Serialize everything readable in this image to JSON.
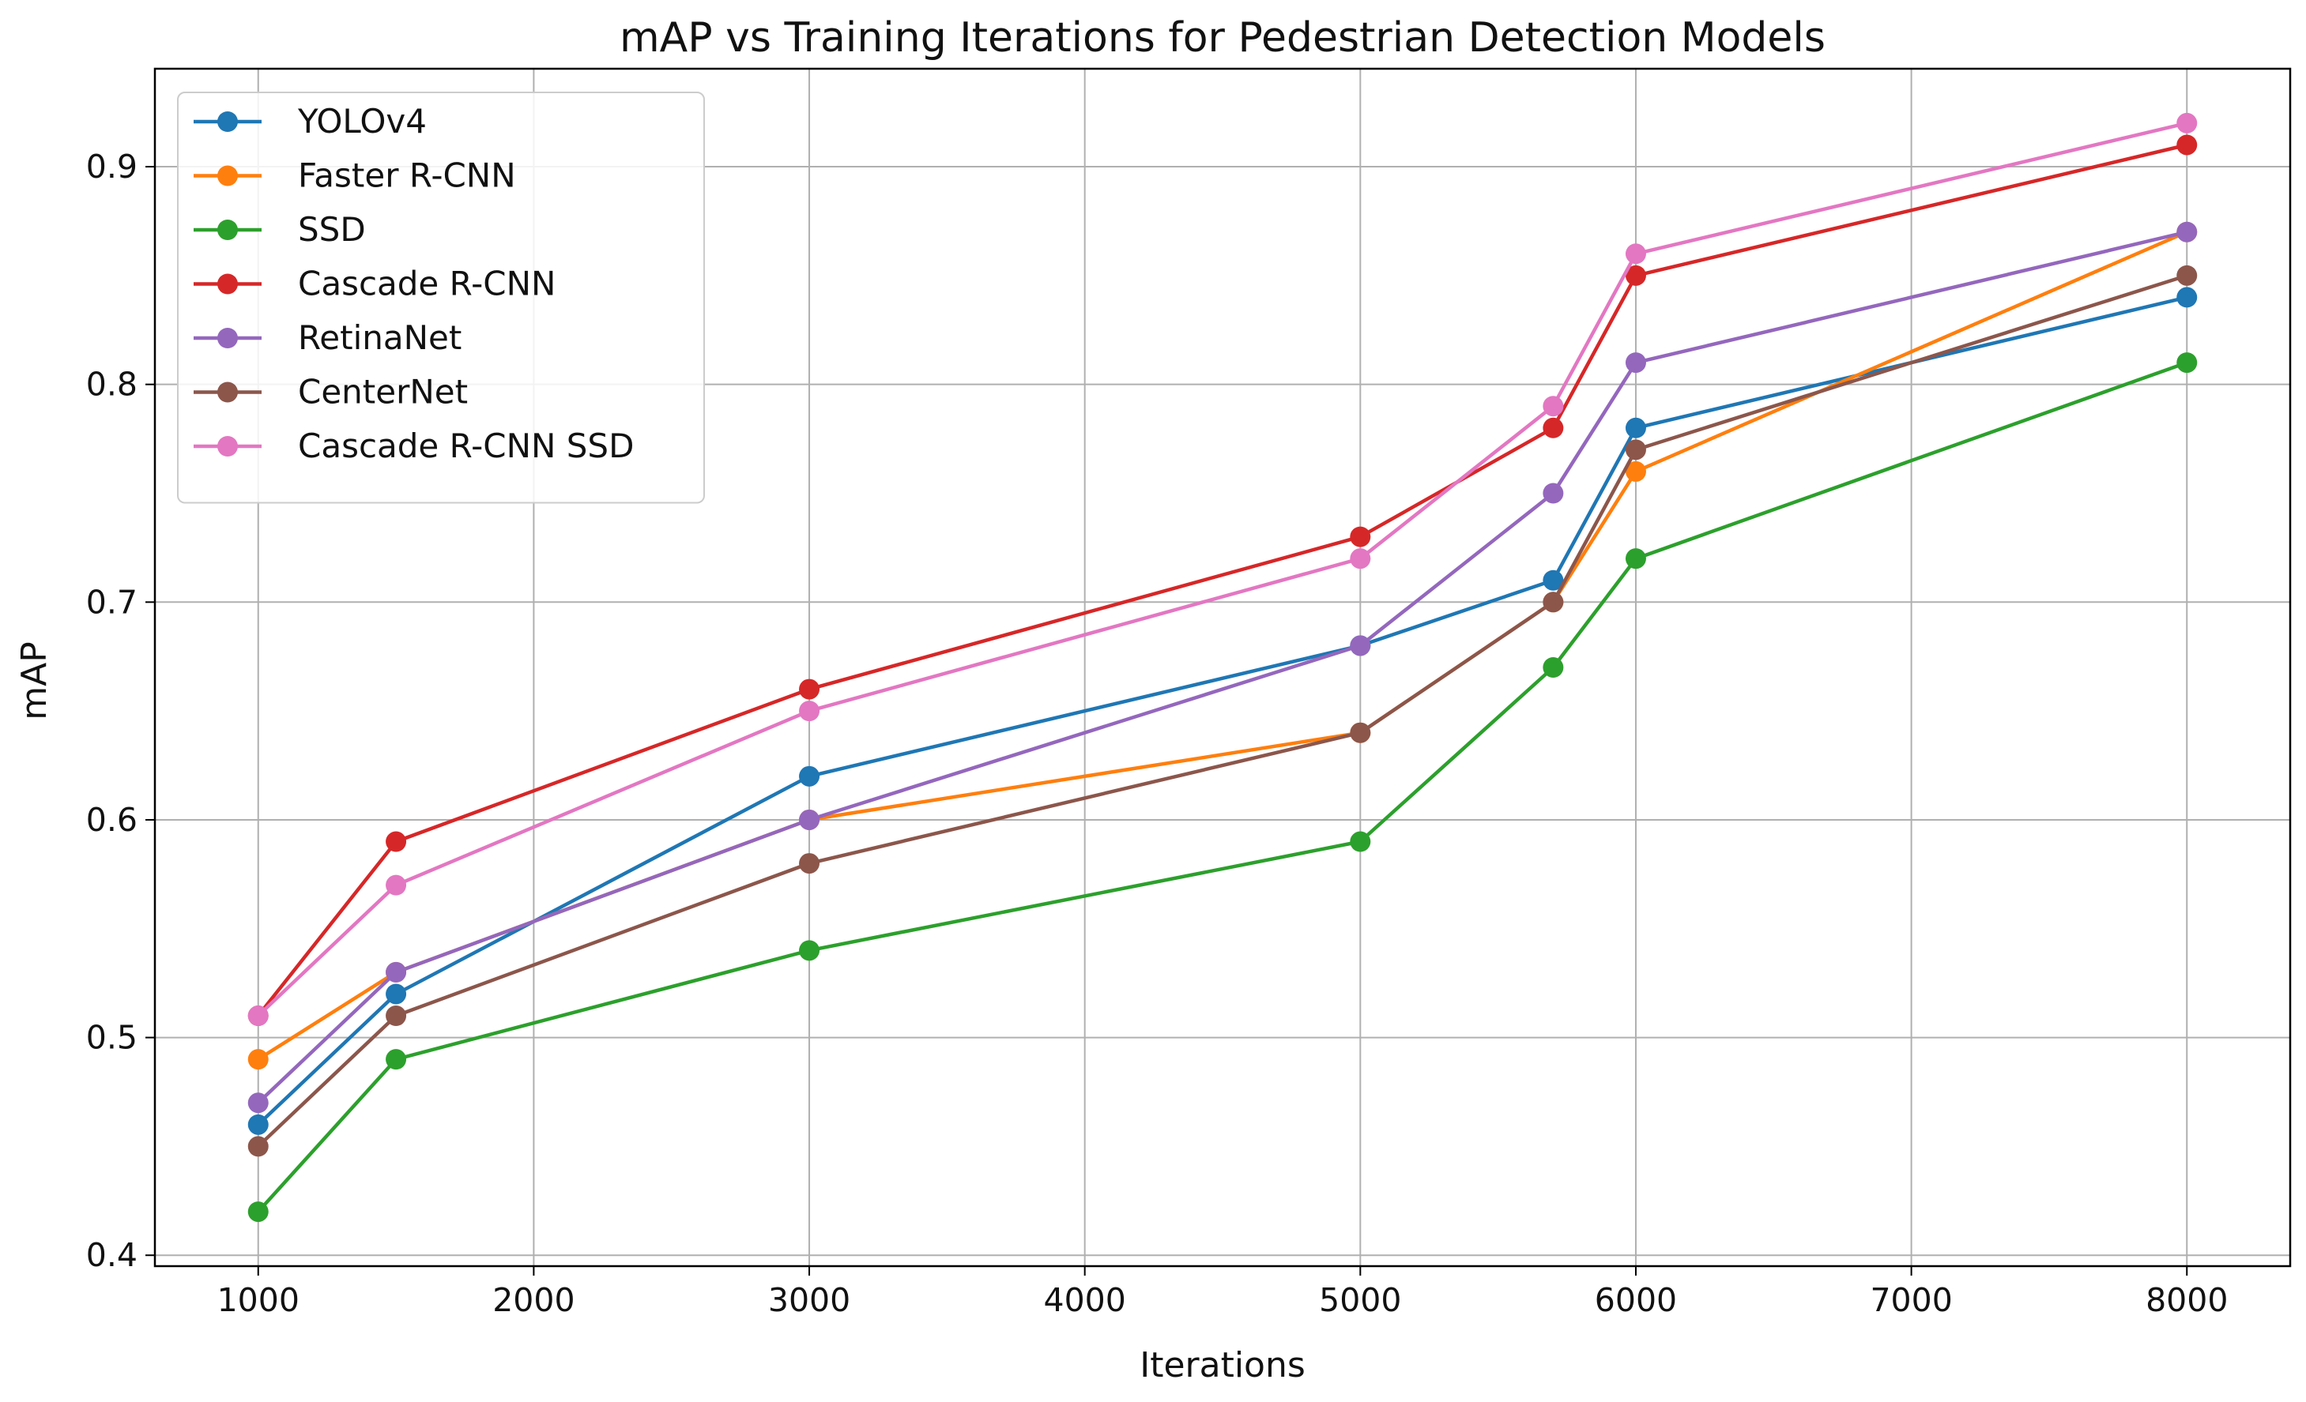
{
  "chart_data": {
    "type": "line",
    "title": "mAP vs Training Iterations for Pedestrian Detection Models",
    "xlabel": "Iterations",
    "ylabel": "mAP",
    "x": [
      1000,
      1500,
      3000,
      5000,
      5700,
      6000,
      8000
    ],
    "xlim": [
      625,
      8375
    ],
    "ylim": [
      0.395,
      0.945
    ],
    "xticks": [
      1000,
      2000,
      3000,
      4000,
      5000,
      6000,
      7000,
      8000
    ],
    "yticks": [
      0.4,
      0.5,
      0.6,
      0.7,
      0.8,
      0.9
    ],
    "xtick_labels": [
      "1000",
      "2000",
      "3000",
      "4000",
      "5000",
      "6000",
      "7000",
      "8000"
    ],
    "ytick_labels": [
      "0.4",
      "0.5",
      "0.6",
      "0.7",
      "0.8",
      "0.9"
    ],
    "grid": true,
    "legend_position": "top-left",
    "series": [
      {
        "name": "YOLOv4",
        "color": "#1f77b4",
        "values": [
          0.46,
          0.52,
          0.62,
          0.68,
          0.71,
          0.78,
          0.84
        ]
      },
      {
        "name": "Faster R-CNN",
        "color": "#ff7f0e",
        "values": [
          0.49,
          0.53,
          0.6,
          0.64,
          0.7,
          0.76,
          0.87
        ]
      },
      {
        "name": "SSD",
        "color": "#2ca02c",
        "values": [
          0.42,
          0.49,
          0.54,
          0.59,
          0.67,
          0.72,
          0.81
        ]
      },
      {
        "name": "Cascade R-CNN",
        "color": "#d62728",
        "values": [
          0.51,
          0.59,
          0.66,
          0.73,
          0.78,
          0.85,
          0.91
        ]
      },
      {
        "name": "RetinaNet",
        "color": "#9467bd",
        "values": [
          0.47,
          0.53,
          0.6,
          0.68,
          0.75,
          0.81,
          0.87
        ]
      },
      {
        "name": "CenterNet",
        "color": "#8c564b",
        "values": [
          0.45,
          0.51,
          0.58,
          0.64,
          0.7,
          0.77,
          0.85
        ]
      },
      {
        "name": "Cascade R-CNN SSD",
        "color": "#e377c2",
        "values": [
          0.51,
          0.57,
          0.65,
          0.72,
          0.79,
          0.86,
          0.92
        ]
      }
    ]
  }
}
